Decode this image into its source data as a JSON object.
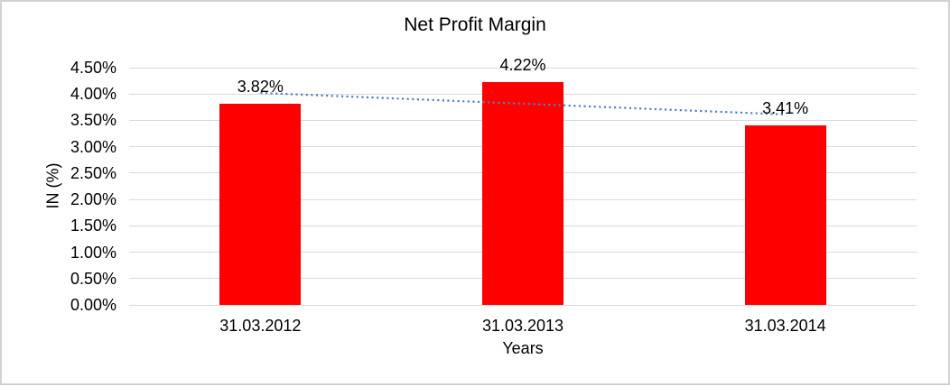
{
  "chart_data": {
    "type": "bar",
    "title": "Net Profit Margin",
    "categories": [
      "31.03.2012",
      "31.03.2013",
      "31.03.2014"
    ],
    "values": [
      3.82,
      4.22,
      3.41
    ],
    "data_labels": [
      "3.82%",
      "4.22%",
      "3.41%"
    ],
    "xlabel": "Years",
    "ylabel": "IN (%)",
    "ylim": [
      0,
      4.5
    ],
    "ytick_step": 0.5,
    "ytick_labels": [
      "0.00%",
      "0.50%",
      "1.00%",
      "1.50%",
      "2.00%",
      "2.50%",
      "3.00%",
      "3.50%",
      "4.00%",
      "4.50%"
    ],
    "grid": true,
    "legend": "none",
    "trendline": {
      "type": "linear",
      "style": "dotted"
    },
    "colors": {
      "bar": "#FF0000",
      "trendline": "#4F81BD",
      "gridline": "#D9D9D9",
      "text": "#000000",
      "page_border": "#D2D2D2"
    }
  }
}
